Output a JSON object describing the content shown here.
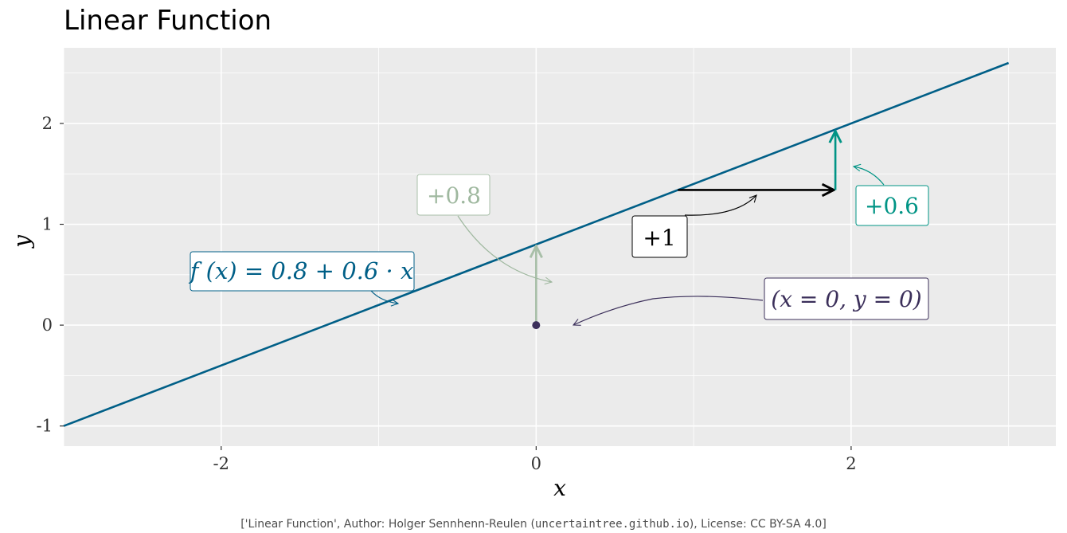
{
  "chart_data": {
    "type": "line",
    "title": "Linear Function",
    "xlabel": "x",
    "ylabel": "y",
    "xlim": [
      -3.0,
      3.3
    ],
    "ylim": [
      -1.2,
      2.75
    ],
    "x_ticks": [
      -2,
      0,
      2
    ],
    "x_tick_labels": [
      "-2",
      "0",
      "2"
    ],
    "y_ticks": [
      -1,
      0,
      1,
      2
    ],
    "y_tick_labels": [
      "-1",
      "0",
      "1",
      "2"
    ],
    "grid": true,
    "series": [
      {
        "x": [
          -3,
          3
        ],
        "y": [
          -1.0,
          2.6
        ],
        "color": "#005f87"
      }
    ],
    "point": {
      "x": 0,
      "y": 0,
      "color": "#3b2f5a"
    },
    "segments": {
      "intercept": {
        "x": 0,
        "y_from": 0,
        "y_to": 0.8,
        "color": "#a8bfa8"
      },
      "run": {
        "x_from": 0.9,
        "x_to": 1.9,
        "y": 1.34,
        "color": "#000000"
      },
      "rise": {
        "x": 1.9,
        "y_from": 1.34,
        "y_to": 1.94,
        "color": "#009485"
      }
    },
    "annotations": [
      {
        "key": "formula",
        "text": "f (x) = 0.8 + 0.6 · x",
        "color": "#005f87"
      },
      {
        "key": "intercept",
        "text": "+0.8",
        "color": "#9fb89f"
      },
      {
        "key": "run",
        "text": "+1",
        "color": "#000000"
      },
      {
        "key": "rise",
        "text": "+0.6",
        "color": "#009485"
      },
      {
        "key": "origin",
        "text": "(x = 0, y = 0)",
        "color": "#3b2f5a"
      }
    ],
    "caption_parts": [
      "['Linear Function', Author: Holger Sennhenn-Reulen (",
      "uncertaintree.github.io",
      "), License: CC BY-SA 4.0]"
    ],
    "colors": {
      "panel": "#ebebeb",
      "grid": "#ffffff"
    }
  }
}
